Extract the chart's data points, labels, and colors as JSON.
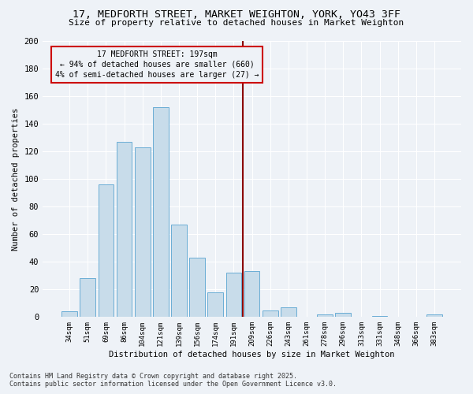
{
  "title_line1": "17, MEDFORTH STREET, MARKET WEIGHTON, YORK, YO43 3FF",
  "title_line2": "Size of property relative to detached houses in Market Weighton",
  "xlabel": "Distribution of detached houses by size in Market Weighton",
  "ylabel": "Number of detached properties",
  "categories": [
    "34sqm",
    "51sqm",
    "69sqm",
    "86sqm",
    "104sqm",
    "121sqm",
    "139sqm",
    "156sqm",
    "174sqm",
    "191sqm",
    "209sqm",
    "226sqm",
    "243sqm",
    "261sqm",
    "278sqm",
    "296sqm",
    "313sqm",
    "331sqm",
    "348sqm",
    "366sqm",
    "383sqm"
  ],
  "values": [
    4,
    28,
    96,
    127,
    123,
    152,
    67,
    43,
    18,
    32,
    33,
    5,
    7,
    0,
    2,
    3,
    0,
    1,
    0,
    0,
    2
  ],
  "bar_color": "#c8dcea",
  "bar_edge_color": "#6aadd5",
  "vline_color": "#8b0000",
  "annotation_text": "17 MEDFORTH STREET: 197sqm\n← 94% of detached houses are smaller (660)\n4% of semi-detached houses are larger (27) →",
  "annotation_box_color": "#cc0000",
  "ylim": [
    0,
    200
  ],
  "yticks": [
    0,
    20,
    40,
    60,
    80,
    100,
    120,
    140,
    160,
    180,
    200
  ],
  "bg_color": "#eef2f7",
  "grid_color": "#ffffff",
  "footer_line1": "Contains HM Land Registry data © Crown copyright and database right 2025.",
  "footer_line2": "Contains public sector information licensed under the Open Government Licence v3.0."
}
